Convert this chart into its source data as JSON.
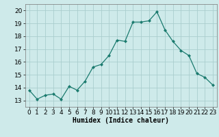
{
  "x": [
    0,
    1,
    2,
    3,
    4,
    5,
    6,
    7,
    8,
    9,
    10,
    11,
    12,
    13,
    14,
    15,
    16,
    17,
    18,
    19,
    20,
    21,
    22,
    23
  ],
  "y": [
    13.8,
    13.1,
    13.4,
    13.5,
    13.1,
    14.1,
    13.8,
    14.5,
    15.6,
    15.8,
    16.5,
    17.7,
    17.6,
    19.1,
    19.1,
    19.2,
    19.9,
    18.5,
    17.6,
    16.9,
    16.5,
    15.1,
    14.8,
    14.2
  ],
  "line_color": "#1a7a6e",
  "marker_color": "#1a7a6e",
  "bg_color": "#ceeaea",
  "grid_color": "#aacece",
  "xlabel": "Humidex (Indice chaleur)",
  "xlim": [
    -0.5,
    23.5
  ],
  "ylim": [
    12.5,
    20.5
  ],
  "yticks": [
    13,
    14,
    15,
    16,
    17,
    18,
    19,
    20
  ],
  "xticks": [
    0,
    1,
    2,
    3,
    4,
    5,
    6,
    7,
    8,
    9,
    10,
    11,
    12,
    13,
    14,
    15,
    16,
    17,
    18,
    19,
    20,
    21,
    22,
    23
  ],
  "xlabel_fontsize": 7,
  "tick_fontsize": 6.5
}
